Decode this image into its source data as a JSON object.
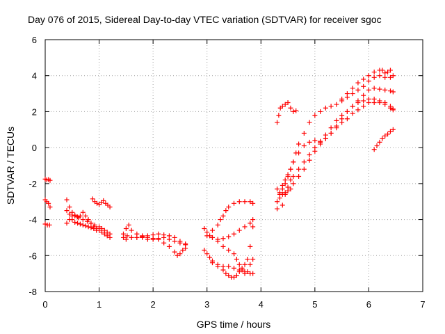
{
  "chart_data": {
    "type": "scatter",
    "title": "Day 076 of 2015, Sidereal Day-to-day VTEC variation (SDTVAR) for receiver sgoc",
    "xlabel": "GPS time / hours",
    "ylabel": "SDTVAR / TECUs",
    "xlim": [
      0,
      7
    ],
    "ylim": [
      -8,
      6
    ],
    "x_ticks": [
      0,
      1,
      2,
      3,
      4,
      5,
      6,
      7
    ],
    "y_ticks": [
      -8,
      -6,
      -4,
      -2,
      0,
      2,
      4,
      6
    ],
    "x_tick_labels": [
      "0",
      "1",
      "2",
      "3",
      "4",
      "5",
      "6",
      "7"
    ],
    "y_tick_labels": [
      "-8",
      "-6",
      "-4",
      "-2",
      "0",
      "2",
      "4",
      "6"
    ],
    "grid": true,
    "grid_style": "dotted",
    "marker": "plus",
    "marker_color": "#ff0000",
    "series": [
      {
        "points": [
          [
            0.0,
            -1.75
          ],
          [
            0.03,
            -1.8
          ],
          [
            0.06,
            -1.78
          ],
          [
            0.09,
            -1.82
          ]
        ]
      },
      {
        "points": [
          [
            0.0,
            -2.9
          ],
          [
            0.03,
            -3.0
          ],
          [
            0.06,
            -3.1
          ],
          [
            0.09,
            -3.3
          ]
        ]
      },
      {
        "points": [
          [
            0.0,
            -4.25
          ],
          [
            0.04,
            -4.3
          ],
          [
            0.08,
            -4.3
          ]
        ]
      },
      {
        "points": [
          [
            0.4,
            -2.9
          ],
          [
            0.45,
            -3.3
          ],
          [
            0.5,
            -3.6
          ],
          [
            0.55,
            -3.8
          ],
          [
            0.62,
            -3.9
          ],
          [
            0.7,
            -4.0
          ],
          [
            0.78,
            -4.1
          ],
          [
            0.85,
            -4.2
          ],
          [
            0.92,
            -4.3
          ],
          [
            1.0,
            -4.4
          ],
          [
            1.05,
            -4.5
          ],
          [
            1.1,
            -4.6
          ],
          [
            1.15,
            -4.7
          ],
          [
            1.2,
            -4.8
          ]
        ]
      },
      {
        "points": [
          [
            0.4,
            -4.2
          ],
          [
            0.45,
            -4.0
          ],
          [
            0.5,
            -3.8
          ],
          [
            0.55,
            -3.75
          ],
          [
            0.6,
            -3.85
          ],
          [
            0.65,
            -3.8
          ],
          [
            0.7,
            -3.6
          ],
          [
            0.75,
            -3.8
          ],
          [
            0.8,
            -4.0
          ],
          [
            0.85,
            -4.2
          ],
          [
            0.9,
            -4.4
          ],
          [
            0.95,
            -4.5
          ],
          [
            1.0,
            -4.6
          ],
          [
            1.05,
            -4.7
          ],
          [
            1.1,
            -4.8
          ],
          [
            1.15,
            -4.9
          ],
          [
            1.2,
            -5.0
          ]
        ]
      },
      {
        "points": [
          [
            0.4,
            -3.5
          ],
          [
            0.45,
            -3.7
          ],
          [
            0.5,
            -4.0
          ],
          [
            0.55,
            -4.15
          ],
          [
            0.6,
            -4.2
          ],
          [
            0.65,
            -4.25
          ],
          [
            0.7,
            -4.3
          ],
          [
            0.75,
            -4.35
          ],
          [
            0.8,
            -4.4
          ],
          [
            0.85,
            -4.45
          ],
          [
            0.9,
            -4.5
          ],
          [
            0.95,
            -4.6
          ]
        ]
      },
      {
        "points": [
          [
            0.88,
            -2.85
          ],
          [
            0.92,
            -3.0
          ],
          [
            0.96,
            -3.1
          ],
          [
            1.0,
            -3.15
          ],
          [
            1.04,
            -3.05
          ],
          [
            1.08,
            -2.95
          ],
          [
            1.12,
            -3.1
          ],
          [
            1.16,
            -3.2
          ],
          [
            1.2,
            -3.3
          ]
        ]
      },
      {
        "points": [
          [
            1.45,
            -5.0
          ],
          [
            1.5,
            -4.5
          ],
          [
            1.55,
            -4.3
          ],
          [
            1.6,
            -4.6
          ],
          [
            1.7,
            -4.8
          ],
          [
            1.8,
            -4.9
          ],
          [
            1.9,
            -5.0
          ],
          [
            2.0,
            -5.05
          ],
          [
            2.1,
            -5.1
          ],
          [
            2.2,
            -5.3
          ],
          [
            2.3,
            -5.5
          ],
          [
            2.4,
            -5.8
          ],
          [
            2.45,
            -6.0
          ],
          [
            2.5,
            -5.9
          ],
          [
            2.55,
            -5.7
          ],
          [
            2.6,
            -5.6
          ]
        ]
      },
      {
        "points": [
          [
            1.45,
            -4.8
          ],
          [
            1.52,
            -4.9
          ],
          [
            1.6,
            -5.0
          ],
          [
            1.7,
            -5.0
          ],
          [
            1.8,
            -5.0
          ],
          [
            1.9,
            -5.1
          ],
          [
            2.0,
            -5.1
          ],
          [
            2.1,
            -5.05
          ],
          [
            2.2,
            -5.0
          ],
          [
            2.3,
            -5.1
          ],
          [
            2.4,
            -5.2
          ],
          [
            2.5,
            -5.3
          ],
          [
            2.6,
            -5.35
          ]
        ]
      },
      {
        "points": [
          [
            1.5,
            -5.1
          ],
          [
            1.6,
            -5.0
          ],
          [
            1.7,
            -5.0
          ],
          [
            1.8,
            -4.95
          ],
          [
            1.9,
            -4.9
          ],
          [
            2.0,
            -4.85
          ],
          [
            2.1,
            -4.8
          ],
          [
            2.2,
            -4.85
          ],
          [
            2.3,
            -4.9
          ],
          [
            2.4,
            -5.0
          ],
          [
            2.5,
            -5.2
          ],
          [
            2.6,
            -5.4
          ]
        ]
      },
      {
        "points": [
          [
            2.95,
            -4.5
          ],
          [
            3.0,
            -4.7
          ],
          [
            3.05,
            -4.9
          ],
          [
            3.1,
            -5.0
          ],
          [
            3.2,
            -5.1
          ],
          [
            3.3,
            -5.05
          ],
          [
            3.4,
            -4.95
          ],
          [
            3.5,
            -4.8
          ],
          [
            3.6,
            -4.6
          ],
          [
            3.7,
            -4.4
          ],
          [
            3.8,
            -4.2
          ],
          [
            3.85,
            -4.0
          ]
        ]
      },
      {
        "points": [
          [
            2.95,
            -5.7
          ],
          [
            3.0,
            -5.9
          ],
          [
            3.05,
            -6.1
          ],
          [
            3.1,
            -6.3
          ],
          [
            3.2,
            -6.5
          ],
          [
            3.3,
            -6.6
          ],
          [
            3.4,
            -6.6
          ],
          [
            3.5,
            -6.7
          ],
          [
            3.6,
            -6.8
          ],
          [
            3.7,
            -6.9
          ],
          [
            3.8,
            -7.0
          ],
          [
            3.85,
            -7.0
          ]
        ]
      },
      {
        "points": [
          [
            3.0,
            -4.9
          ],
          [
            3.1,
            -4.6
          ],
          [
            3.2,
            -4.3
          ],
          [
            3.25,
            -4.0
          ],
          [
            3.3,
            -3.8
          ],
          [
            3.35,
            -3.5
          ],
          [
            3.4,
            -3.3
          ],
          [
            3.5,
            -3.1
          ],
          [
            3.6,
            -3.0
          ],
          [
            3.7,
            -3.0
          ],
          [
            3.8,
            -3.0
          ],
          [
            3.85,
            -3.1
          ]
        ]
      },
      {
        "points": [
          [
            3.1,
            -6.4
          ],
          [
            3.2,
            -6.6
          ],
          [
            3.3,
            -6.8
          ],
          [
            3.35,
            -7.0
          ],
          [
            3.4,
            -7.1
          ],
          [
            3.45,
            -7.2
          ],
          [
            3.5,
            -7.2
          ],
          [
            3.55,
            -7.1
          ],
          [
            3.6,
            -6.9
          ],
          [
            3.65,
            -6.7
          ],
          [
            3.7,
            -6.5
          ],
          [
            3.75,
            -6.2
          ],
          [
            3.8,
            -5.5
          ],
          [
            3.85,
            -4.4
          ]
        ]
      },
      {
        "points": [
          [
            3.1,
            -5.0
          ],
          [
            3.2,
            -5.2
          ],
          [
            3.3,
            -5.5
          ],
          [
            3.4,
            -5.7
          ],
          [
            3.5,
            -5.9
          ],
          [
            3.55,
            -6.2
          ],
          [
            3.6,
            -6.5
          ],
          [
            3.65,
            -6.8
          ],
          [
            3.7,
            -7.0
          ],
          [
            3.75,
            -6.9
          ],
          [
            3.8,
            -6.5
          ],
          [
            3.85,
            -6.2
          ]
        ]
      },
      {
        "points": [
          [
            4.3,
            1.4
          ],
          [
            4.33,
            1.8
          ],
          [
            4.36,
            2.2
          ],
          [
            4.4,
            2.3
          ],
          [
            4.45,
            2.4
          ],
          [
            4.5,
            2.5
          ],
          [
            4.55,
            2.2
          ],
          [
            4.6,
            2.0
          ],
          [
            4.65,
            2.05
          ]
        ]
      },
      {
        "points": [
          [
            4.3,
            -3.4
          ],
          [
            4.35,
            -2.6
          ],
          [
            4.4,
            -2.1
          ],
          [
            4.45,
            -1.8
          ],
          [
            4.5,
            -1.5
          ],
          [
            4.55,
            -1.2
          ],
          [
            4.6,
            -0.8
          ],
          [
            4.65,
            -0.3
          ],
          [
            4.7,
            0.2
          ],
          [
            4.8,
            0.8
          ],
          [
            4.9,
            1.4
          ],
          [
            5.0,
            1.8
          ],
          [
            5.1,
            2.0
          ],
          [
            5.2,
            2.2
          ],
          [
            5.3,
            2.3
          ],
          [
            5.4,
            2.4
          ],
          [
            5.5,
            2.6
          ],
          [
            5.6,
            2.8
          ],
          [
            5.7,
            3.0
          ],
          [
            5.8,
            3.2
          ],
          [
            5.9,
            3.4
          ],
          [
            6.0,
            3.7
          ],
          [
            6.1,
            3.9
          ],
          [
            6.2,
            4.0
          ],
          [
            6.3,
            3.9
          ],
          [
            6.4,
            3.9
          ],
          [
            6.45,
            4.0
          ]
        ]
      },
      {
        "points": [
          [
            4.3,
            -2.3
          ],
          [
            4.35,
            -2.5
          ],
          [
            4.4,
            -2.3
          ],
          [
            4.45,
            -2.0
          ],
          [
            4.5,
            -1.6
          ],
          [
            4.55,
            -1.2
          ],
          [
            4.6,
            -0.8
          ],
          [
            4.7,
            -0.3
          ],
          [
            4.8,
            0.1
          ],
          [
            4.9,
            0.3
          ],
          [
            5.0,
            0.4
          ],
          [
            5.1,
            0.35
          ],
          [
            5.2,
            0.5
          ],
          [
            5.3,
            0.8
          ],
          [
            5.4,
            1.2
          ],
          [
            5.5,
            1.6
          ],
          [
            5.6,
            2.0
          ],
          [
            5.7,
            2.3
          ],
          [
            5.8,
            2.6
          ],
          [
            5.9,
            2.9
          ],
          [
            6.0,
            3.2
          ],
          [
            6.1,
            3.3
          ],
          [
            6.2,
            3.25
          ],
          [
            6.3,
            3.2
          ],
          [
            6.4,
            3.15
          ],
          [
            6.45,
            3.1
          ]
        ]
      },
      {
        "points": [
          [
            4.3,
            -3.0
          ],
          [
            4.35,
            -2.8
          ],
          [
            4.4,
            -2.6
          ],
          [
            4.45,
            -2.5
          ],
          [
            4.5,
            -2.4
          ],
          [
            4.55,
            -2.3
          ],
          [
            4.6,
            -2.0
          ],
          [
            4.7,
            -1.6
          ],
          [
            4.8,
            -1.2
          ],
          [
            4.9,
            -0.7
          ],
          [
            5.0,
            -0.2
          ],
          [
            5.1,
            0.2
          ],
          [
            5.2,
            0.5
          ],
          [
            5.3,
            0.8
          ],
          [
            5.4,
            1.1
          ],
          [
            5.5,
            1.4
          ],
          [
            5.6,
            1.6
          ],
          [
            5.7,
            1.9
          ],
          [
            5.8,
            2.1
          ],
          [
            5.9,
            2.3
          ],
          [
            6.0,
            2.5
          ],
          [
            6.1,
            2.5
          ],
          [
            6.2,
            2.5
          ],
          [
            6.3,
            2.4
          ],
          [
            6.4,
            2.2
          ],
          [
            6.45,
            2.1
          ]
        ]
      },
      {
        "points": [
          [
            4.4,
            -3.2
          ],
          [
            4.45,
            -2.6
          ],
          [
            4.5,
            -2.2
          ],
          [
            4.55,
            -1.8
          ],
          [
            4.6,
            -1.6
          ],
          [
            4.7,
            -1.2
          ],
          [
            4.8,
            -0.8
          ],
          [
            4.9,
            -0.4
          ],
          [
            5.0,
            0.0
          ],
          [
            5.1,
            0.3
          ],
          [
            5.2,
            0.7
          ],
          [
            5.3,
            1.1
          ],
          [
            5.4,
            1.5
          ],
          [
            5.5,
            1.8
          ],
          [
            5.6,
            2.0
          ],
          [
            5.7,
            2.3
          ],
          [
            5.8,
            2.5
          ],
          [
            5.9,
            2.6
          ],
          [
            6.0,
            2.7
          ],
          [
            6.1,
            2.7
          ],
          [
            6.2,
            2.6
          ],
          [
            6.3,
            2.5
          ],
          [
            6.4,
            2.3
          ],
          [
            6.45,
            2.15
          ]
        ]
      },
      {
        "points": [
          [
            5.5,
            2.7
          ],
          [
            5.6,
            3.0
          ],
          [
            5.7,
            3.3
          ],
          [
            5.8,
            3.6
          ],
          [
            5.9,
            3.8
          ],
          [
            6.0,
            4.0
          ],
          [
            6.1,
            4.2
          ],
          [
            6.2,
            4.3
          ],
          [
            6.25,
            4.3
          ],
          [
            6.3,
            4.15
          ],
          [
            6.35,
            4.2
          ],
          [
            6.4,
            4.3
          ]
        ]
      },
      {
        "points": [
          [
            6.1,
            -0.1
          ],
          [
            6.15,
            0.1
          ],
          [
            6.2,
            0.3
          ],
          [
            6.25,
            0.5
          ],
          [
            6.3,
            0.65
          ],
          [
            6.35,
            0.75
          ],
          [
            6.4,
            0.9
          ],
          [
            6.45,
            1.0
          ]
        ]
      }
    ]
  }
}
